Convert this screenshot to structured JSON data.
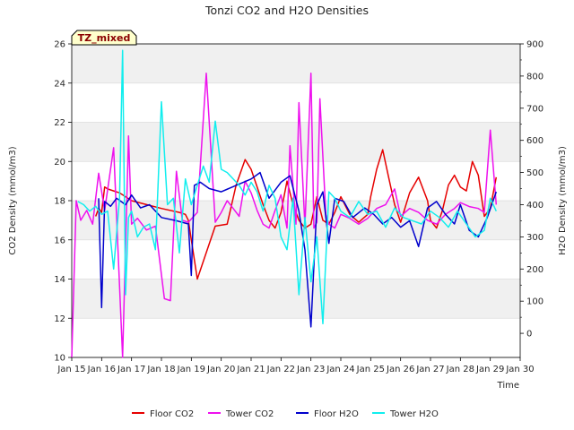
{
  "chart_data": {
    "type": "line",
    "title": "Tonzi CO2 and H2O Densities",
    "xlabel": "Time",
    "ylabel_left": "CO2 Density (mmol/m3)",
    "ylabel_right": "H2O Density (mmol/m3)",
    "badge": "TZ_mixed",
    "x_ticks": [
      "Jan 15",
      "Jan 16",
      "Jan 17",
      "Jan 18",
      "Jan 19",
      "Jan 20",
      "Jan 21",
      "Jan 22",
      "Jan 23",
      "Jan 24",
      "Jan 25",
      "Jan 26",
      "Jan 27",
      "Jan 28",
      "Jan 29",
      "Jan 30"
    ],
    "x_range": [
      15,
      30
    ],
    "ylim_left": [
      10,
      26
    ],
    "yticks_left": [
      "10",
      "12",
      "14",
      "16",
      "18",
      "20",
      "22",
      "24",
      "26"
    ],
    "ylim_right": [
      -75,
      900
    ],
    "yticks_right": [
      "0",
      "100",
      "200",
      "300",
      "400",
      "500",
      "600",
      "700",
      "800",
      "900"
    ],
    "grid": "horizontal bands",
    "legend_position": "bottom",
    "colors": {
      "Floor CO2": "#e60000",
      "Tower CO2": "#ee11ee",
      "Floor H2O": "#0000cc",
      "Tower H2O": "#11eeee"
    },
    "series": [
      {
        "name": "Floor CO2",
        "axis": "left",
        "color": "#e60000",
        "x": [
          15.8,
          15.9,
          16.0,
          16.1,
          16.2,
          16.4,
          16.6,
          16.8,
          17.0,
          17.5,
          18.0,
          18.6,
          18.8,
          18.9,
          19.2,
          19.8,
          20.2,
          20.5,
          20.8,
          21.0,
          21.2,
          21.4,
          21.6,
          21.8,
          22.0,
          22.2,
          22.4,
          22.6,
          22.8,
          23.0,
          23.2,
          23.4,
          23.6,
          23.8,
          24.0,
          24.3,
          24.6,
          24.9,
          25.0,
          25.2,
          25.4,
          25.6,
          25.8,
          26.0,
          26.3,
          26.6,
          26.9,
          27.0,
          27.2,
          27.4,
          27.6,
          27.8,
          28.0,
          28.2,
          28.4,
          28.6,
          28.8,
          29.0,
          29.2
        ],
        "y": [
          17.2,
          17.6,
          17.4,
          18.7,
          18.6,
          18.5,
          18.4,
          18.2,
          18.0,
          17.8,
          17.6,
          17.4,
          17.3,
          17.0,
          14.0,
          16.7,
          16.8,
          18.8,
          20.1,
          19.6,
          18.7,
          17.8,
          17.0,
          16.6,
          17.4,
          19.0,
          17.8,
          17.0,
          16.6,
          16.8,
          18.2,
          17.0,
          16.8,
          17.4,
          18.2,
          17.3,
          16.9,
          17.3,
          18.2,
          19.6,
          20.6,
          19.2,
          17.8,
          16.9,
          18.4,
          19.2,
          18.0,
          17.0,
          16.6,
          17.5,
          18.8,
          19.3,
          18.7,
          18.5,
          20.0,
          19.3,
          17.2,
          17.6,
          19.2
        ]
      },
      {
        "name": "Tower CO2",
        "axis": "left",
        "color": "#ee11ee",
        "x": [
          15.0,
          15.15,
          15.3,
          15.5,
          15.7,
          15.9,
          16.1,
          16.4,
          16.7,
          16.9,
          17.0,
          17.2,
          17.5,
          17.8,
          18.1,
          18.3,
          18.5,
          18.7,
          18.9,
          19.2,
          19.5,
          19.8,
          20.0,
          20.2,
          20.4,
          20.6,
          20.8,
          21.0,
          21.2,
          21.4,
          21.6,
          21.8,
          22.0,
          22.2,
          22.3,
          22.5,
          22.6,
          22.8,
          23.0,
          23.1,
          23.2,
          23.3,
          23.5,
          23.6,
          23.8,
          24.0,
          24.3,
          24.6,
          24.9,
          25.2,
          25.5,
          25.8,
          26.0,
          26.3,
          26.6,
          26.9,
          27.2,
          27.5,
          27.8,
          28.0,
          28.3,
          28.6,
          28.8,
          29.0,
          29.2
        ],
        "y": [
          10.0,
          18.0,
          17.0,
          17.5,
          16.8,
          19.4,
          17.5,
          20.7,
          10.0,
          21.3,
          16.8,
          17.1,
          16.5,
          16.7,
          13.0,
          12.9,
          19.5,
          17.0,
          16.9,
          17.4,
          24.5,
          16.9,
          17.4,
          18.0,
          17.6,
          17.2,
          19.0,
          18.4,
          17.5,
          16.8,
          16.6,
          17.5,
          18.3,
          16.6,
          20.8,
          16.8,
          23.0,
          16.7,
          24.5,
          16.6,
          16.9,
          23.2,
          17.3,
          16.8,
          16.6,
          17.3,
          17.1,
          16.8,
          17.1,
          17.6,
          17.8,
          18.6,
          17.2,
          17.6,
          17.4,
          17.0,
          16.8,
          17.3,
          17.6,
          17.9,
          17.7,
          17.6,
          17.4,
          21.6,
          17.8
        ]
      },
      {
        "name": "Floor H2O",
        "axis": "right",
        "color": "#0000cc",
        "x": [
          15.9,
          16.0,
          16.1,
          16.3,
          16.5,
          16.8,
          17.0,
          17.3,
          17.6,
          18.0,
          18.5,
          18.9,
          19.0,
          19.1,
          19.3,
          19.6,
          20.0,
          20.5,
          21.0,
          21.3,
          21.6,
          22.0,
          22.3,
          22.6,
          22.8,
          23.0,
          23.2,
          23.4,
          23.6,
          23.8,
          24.1,
          24.4,
          24.8,
          25.1,
          25.4,
          25.7,
          26.0,
          26.3,
          26.6,
          26.9,
          27.2,
          27.5,
          27.8,
          28.0,
          28.3,
          28.6,
          28.9,
          29.2
        ],
        "y": [
          420,
          80,
          410,
          395,
          420,
          400,
          430,
          390,
          400,
          360,
          350,
          340,
          180,
          460,
          470,
          450,
          440,
          460,
          480,
          500,
          420,
          470,
          490,
          380,
          260,
          20,
          400,
          440,
          280,
          420,
          410,
          360,
          390,
          370,
          340,
          360,
          330,
          350,
          270,
          390,
          410,
          370,
          340,
          400,
          320,
          300,
          360,
          440
        ]
      },
      {
        "name": "Tower H2O",
        "axis": "right",
        "color": "#11eeee",
        "x": [
          15.2,
          15.4,
          15.6,
          15.8,
          16.0,
          16.2,
          16.4,
          16.6,
          16.7,
          16.8,
          16.9,
          17.0,
          17.2,
          17.4,
          17.6,
          17.8,
          18.0,
          18.2,
          18.4,
          18.6,
          18.8,
          19.0,
          19.2,
          19.4,
          19.6,
          19.8,
          20.0,
          20.2,
          20.4,
          20.6,
          20.8,
          21.0,
          21.2,
          21.4,
          21.6,
          21.8,
          22.0,
          22.2,
          22.4,
          22.6,
          22.8,
          23.0,
          23.2,
          23.4,
          23.6,
          23.8,
          24.0,
          24.3,
          24.6,
          24.9,
          25.2,
          25.5,
          25.8,
          26.1,
          26.4,
          26.7,
          27.0,
          27.3,
          27.6,
          27.9,
          28.2,
          28.5,
          28.8,
          29.0,
          29.2
        ],
        "y": [
          410,
          400,
          380,
          395,
          370,
          380,
          200,
          420,
          880,
          120,
          360,
          380,
          300,
          330,
          340,
          260,
          720,
          400,
          420,
          250,
          480,
          400,
          460,
          520,
          470,
          660,
          510,
          500,
          480,
          460,
          430,
          470,
          440,
          380,
          460,
          420,
          300,
          260,
          420,
          120,
          360,
          160,
          300,
          30,
          440,
          420,
          380,
          360,
          410,
          370,
          380,
          330,
          390,
          360,
          350,
          340,
          380,
          360,
          330,
          380,
          340,
          300,
          320,
          420,
          380
        ]
      }
    ]
  }
}
